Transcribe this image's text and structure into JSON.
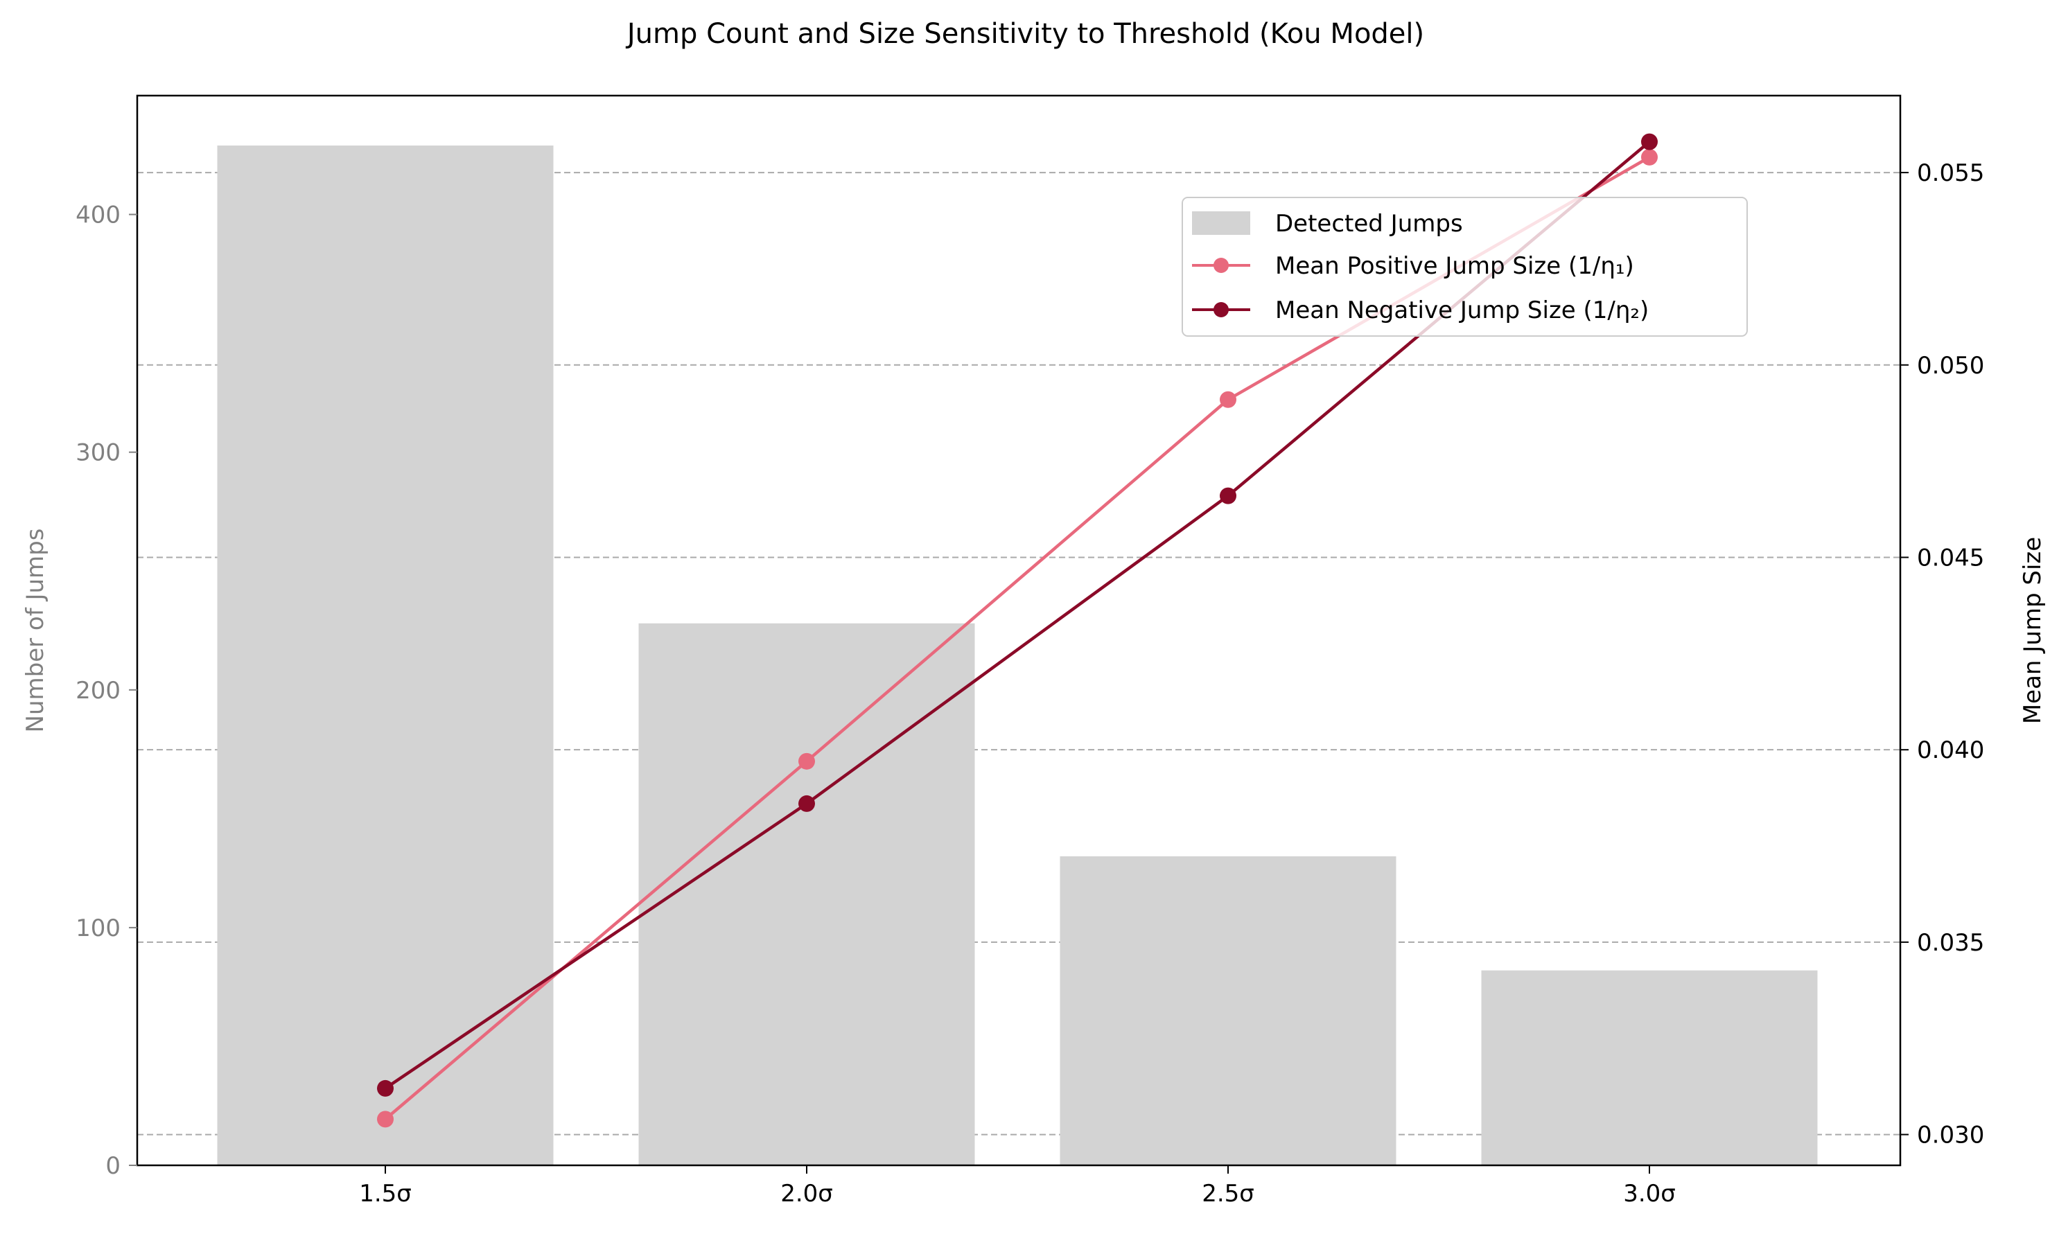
{
  "chart_data": {
    "type": "bar+line",
    "title": "Jump Count and Size Sensitivity to Threshold (Kou Model)",
    "categories": [
      "1.5σ",
      "2.0σ",
      "2.5σ",
      "3.0σ"
    ],
    "bars": {
      "name": "Detected Jumps",
      "values": [
        429,
        228,
        130,
        82
      ],
      "color": "#d3d3d3"
    },
    "series": [
      {
        "name": "Mean Positive Jump Size (1/η₁)",
        "values": [
          0.0304,
          0.0397,
          0.0491,
          0.0554
        ],
        "color": "#e8697d"
      },
      {
        "name": "Mean Negative Jump Size (1/η₂)",
        "values": [
          0.0312,
          0.0386,
          0.0466,
          0.0558
        ],
        "color": "#8b0a28"
      }
    ],
    "y_left": {
      "label": "Number of Jumps",
      "ylim": [
        0,
        450
      ],
      "ticks": [
        0,
        100,
        200,
        300,
        400
      ],
      "tick_labels": [
        "0",
        "100",
        "200",
        "300",
        "400"
      ],
      "color": "#808080"
    },
    "y_right": {
      "label": "Mean Jump Size",
      "ylim": [
        0.0292,
        0.057
      ],
      "ticks": [
        0.03,
        0.035,
        0.04,
        0.045,
        0.05,
        0.055
      ],
      "tick_labels": [
        "0.030",
        "0.035",
        "0.040",
        "0.045",
        "0.050",
        "0.055"
      ],
      "color": "#000000"
    },
    "grid": {
      "axis": "y-right",
      "style": "dashed",
      "color": "#aaaaaa"
    },
    "legend": {
      "position": "upper-right"
    }
  }
}
